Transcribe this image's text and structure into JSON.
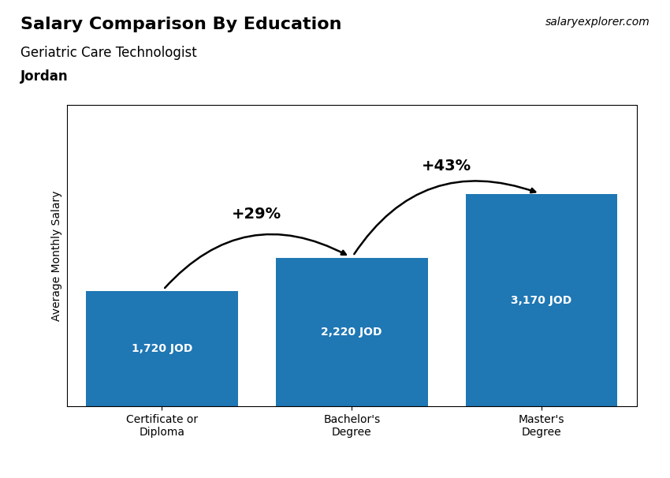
{
  "chart_data": {
    "type": "bar",
    "title": "Salary Comparison By Education",
    "subtitle": "Geriatric Care Technologist",
    "y_label": "Average Monthly Salary",
    "categories": [
      "Certificate or\nDiploma",
      "Bachelor's\nDegree",
      "Master's\nDegree"
    ],
    "values": [
      1720,
      2220,
      3170
    ],
    "value_labels": [
      "1,720 JOD",
      "2,220 JOD",
      "3,170 JOD"
    ],
    "data_labels": true,
    "ylim": [
      0,
      4500
    ],
    "tick_labels": "x",
    "annotations": [
      {
        "text": "Jordan"
      },
      {
        "text": "salaryexplorer.com"
      },
      {
        "text": "+29%",
        "from": 0,
        "to": 1
      },
      {
        "text": "+43%",
        "from": 1,
        "to": 2
      }
    ]
  }
}
